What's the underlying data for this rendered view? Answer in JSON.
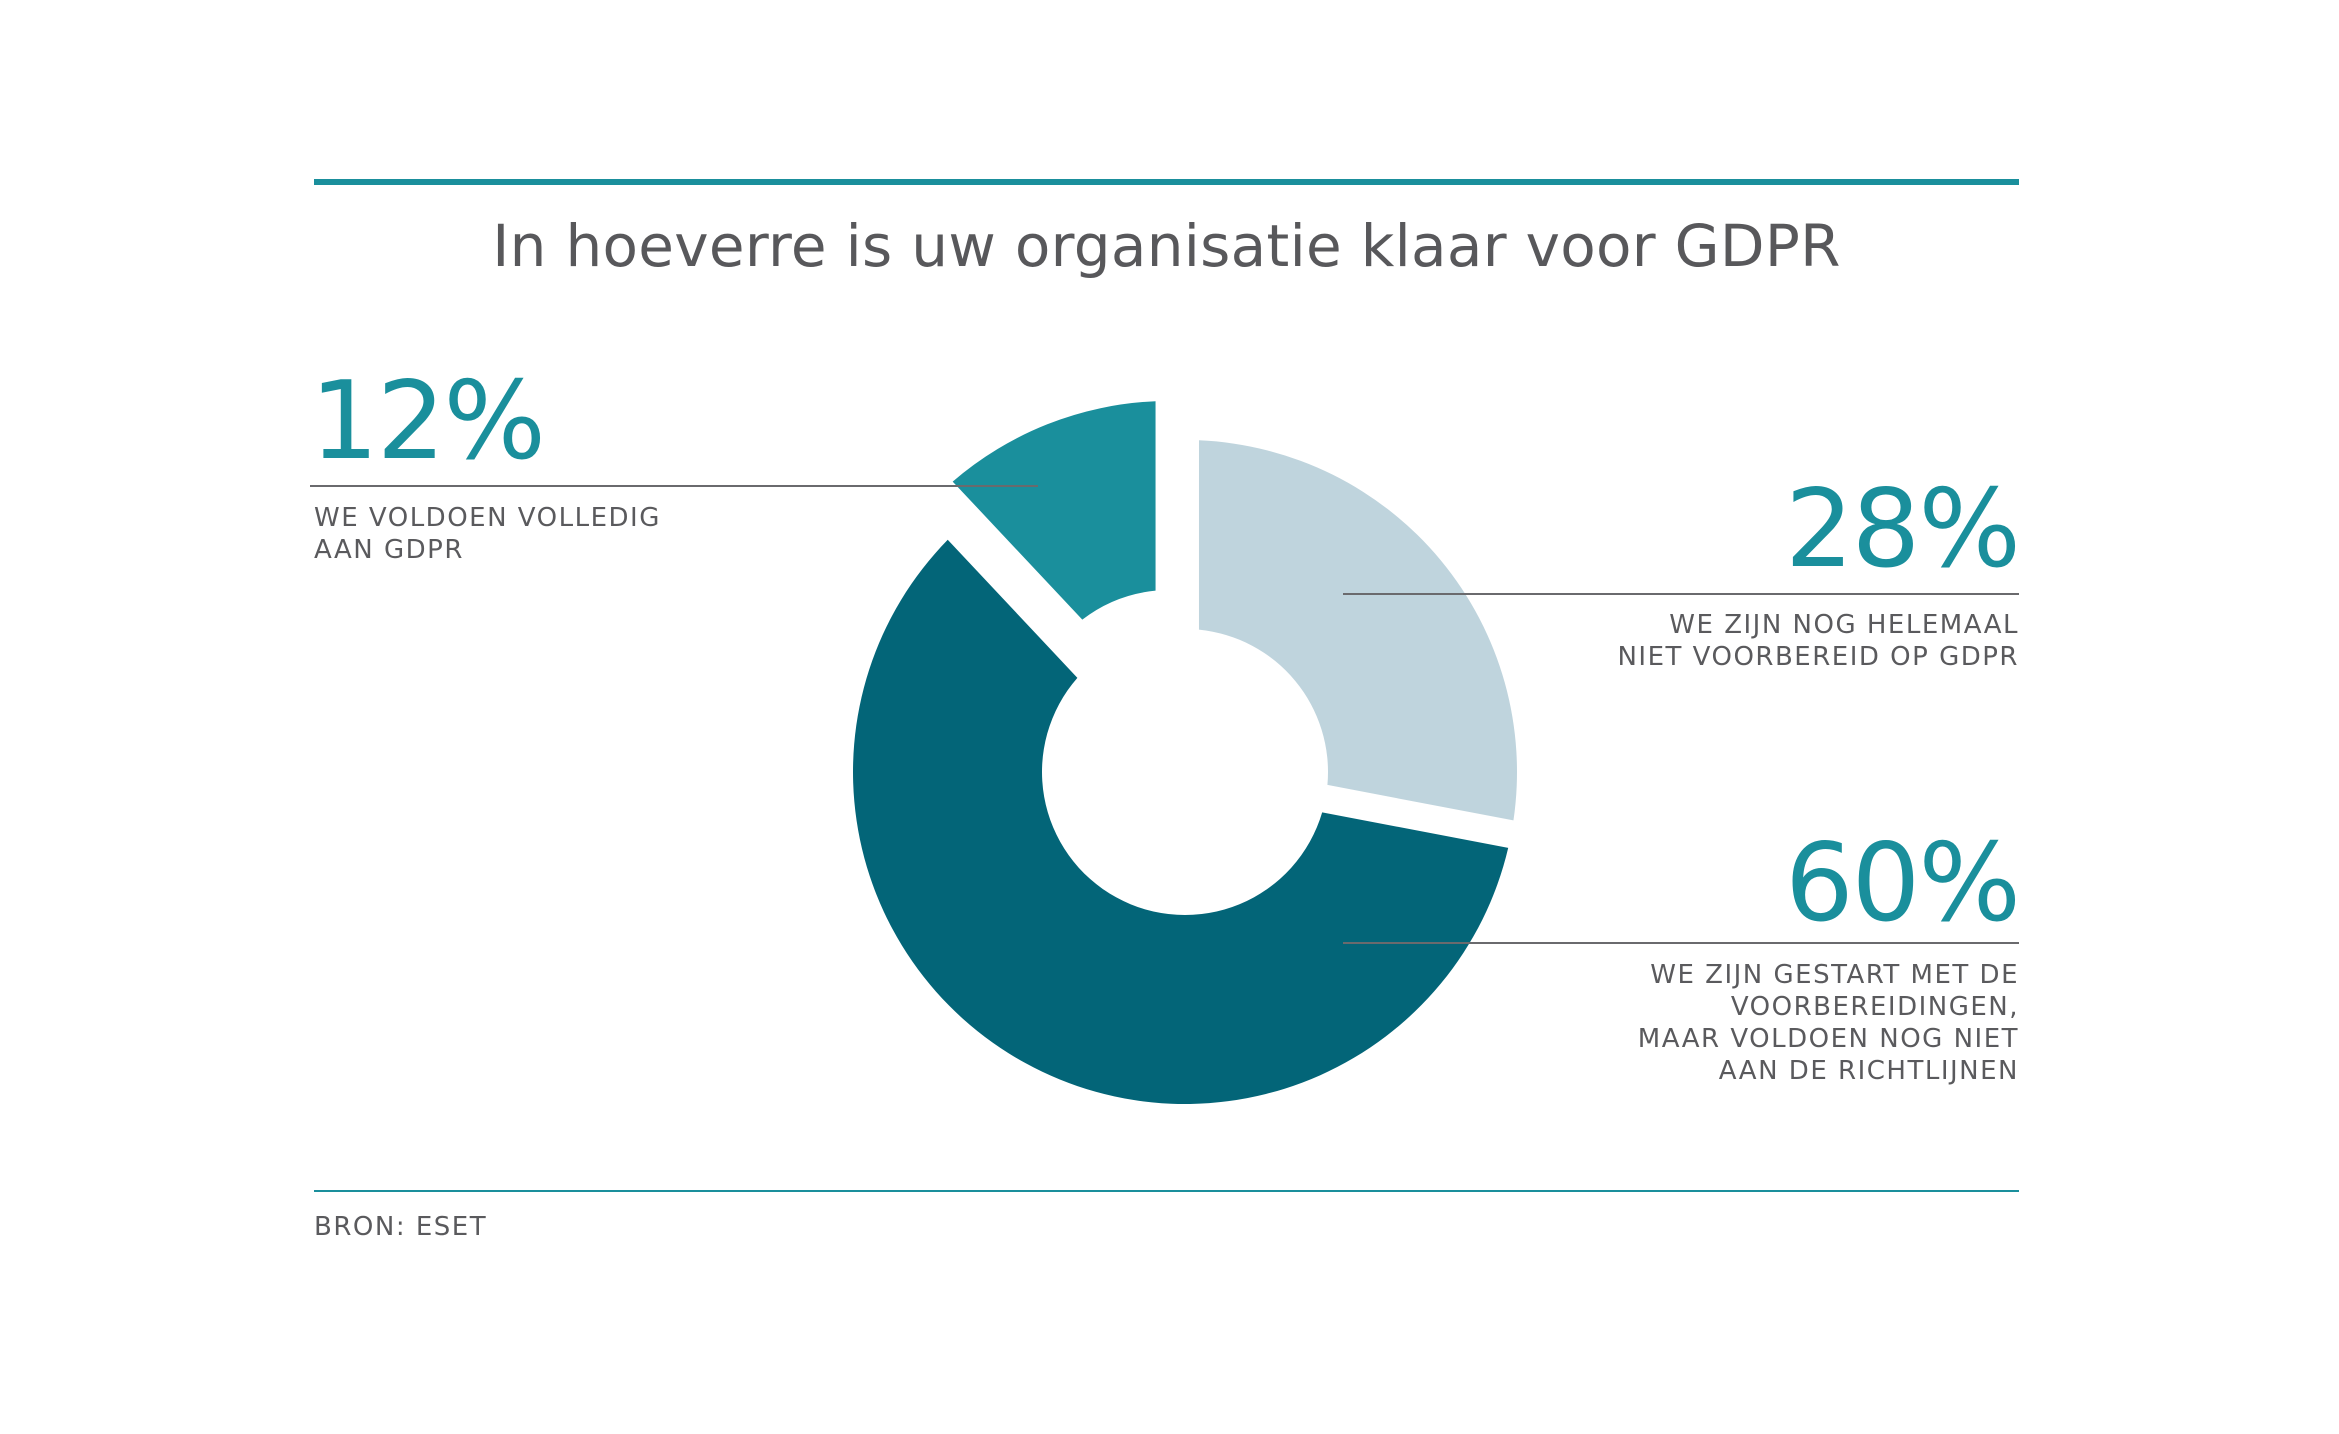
{
  "chart_data": {
    "type": "pie",
    "title": "In hoeverre is uw organisatie klaar voor GDPR",
    "slices": [
      {
        "value": 12,
        "value_label": "12%",
        "label_lines": [
          "WE VOLDOEN VOLLEDIG",
          "AAN GDPR"
        ],
        "color": "#1a8f9c",
        "exploded": true
      },
      {
        "value": 28,
        "value_label": "28%",
        "label_lines": [
          "WE ZIJN NOG HELEMAAL",
          "NIET VOORBEREID OP GDPR"
        ],
        "color": "#bfd4dd",
        "exploded": false
      },
      {
        "value": 60,
        "value_label": "60%",
        "label_lines": [
          "WE ZIJN GESTART MET DE",
          "VOORBEREIDINGEN,",
          "MAAR VOLDOEN NOG NIET",
          "AAN DE RICHTLIJNEN"
        ],
        "color": "#036578",
        "exploded": false
      }
    ],
    "accent_color": "#1a8f9c",
    "source": "BRON: ESET"
  }
}
